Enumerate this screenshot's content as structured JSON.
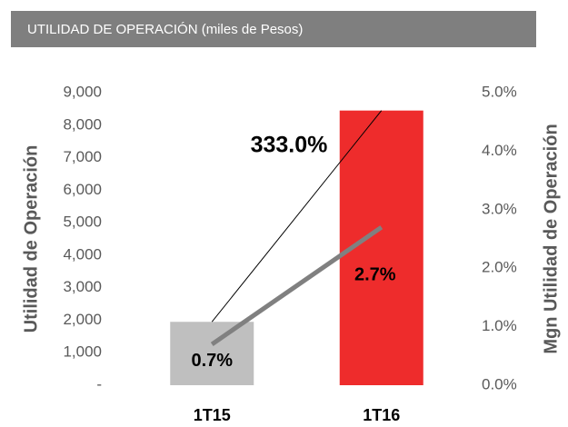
{
  "chart_data": {
    "type": "bar",
    "title": "UTILIDAD DE OPERACIÓN (miles de Pesos)",
    "categories": [
      "1T15",
      "1T16"
    ],
    "series": [
      {
        "type": "bar",
        "colors": [
          "#bfbfbf",
          "#ee2c2c"
        ],
        "values": [
          1950,
          8450
        ]
      },
      {
        "type": "line",
        "axis": "y2",
        "color": "#808080",
        "values": [
          0.7,
          2.7
        ],
        "value_labels": [
          "0.7%",
          "2.7%"
        ]
      }
    ],
    "annotation": "333.0%",
    "y_label": "Utilidad de Operación",
    "y2_label": "Mgn Utilidad de Operación",
    "ylim": [
      0,
      9000
    ],
    "yticks": [
      {
        "value": 0,
        "label": "-"
      },
      {
        "value": 1000,
        "label": "1,000"
      },
      {
        "value": 2000,
        "label": "2,000"
      },
      {
        "value": 3000,
        "label": "3,000"
      },
      {
        "value": 4000,
        "label": "4,000"
      },
      {
        "value": 5000,
        "label": "5,000"
      },
      {
        "value": 6000,
        "label": "6,000"
      },
      {
        "value": 7000,
        "label": "7,000"
      },
      {
        "value": 8000,
        "label": "8,000"
      },
      {
        "value": 9000,
        "label": "9,000"
      }
    ],
    "y2lim": [
      0,
      5
    ],
    "y2ticks": [
      {
        "value": 0,
        "label": "0.0%"
      },
      {
        "value": 1,
        "label": "1.0%"
      },
      {
        "value": 2,
        "label": "2.0%"
      },
      {
        "value": 3,
        "label": "3.0%"
      },
      {
        "value": 4,
        "label": "4.0%"
      },
      {
        "value": 5,
        "label": "5.0%"
      }
    ],
    "grid": false
  }
}
